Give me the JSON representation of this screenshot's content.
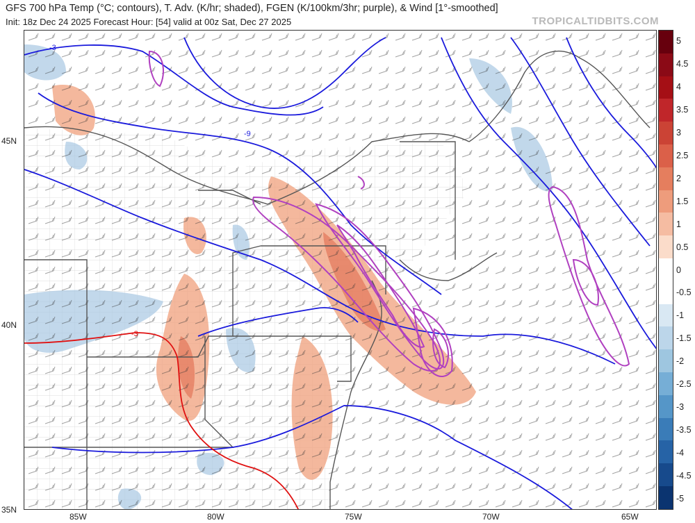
{
  "header": {
    "title": "GFS 700 hPa Temp (°C; contours), T. Adv. (K/hr; shaded), FGEN (K/100km/3hr; purple), & Wind [1°-smoothed]",
    "subtitle": "Init: 18z Dec 24 2025   Forecast Hour: [54]   valid at 00z Sat, Dec 27 2025",
    "brand": "TROPICALTIDBITS.COM"
  },
  "latitude_labels": [
    "45N",
    "40N",
    "35N"
  ],
  "longitude_labels": [
    "85W",
    "80W",
    "75W",
    "70W",
    "65W"
  ],
  "contour_labels": [
    "-3",
    "-9",
    "-3"
  ],
  "colorbar": {
    "ticks": [
      "5",
      "4.5",
      "4",
      "3.5",
      "3",
      "2.5",
      "2",
      "1.5",
      "1",
      "0.5",
      "0",
      "-0.5",
      "-1",
      "-1.5",
      "-2",
      "-2.5",
      "-3",
      "-3.5",
      "-4",
      "-4.5",
      "-5"
    ],
    "colors": [
      "#67000d",
      "#8b0a16",
      "#a50f15",
      "#c0262a",
      "#cb4335",
      "#db6049",
      "#e57e5e",
      "#ee9c7c",
      "#f5bca2",
      "#fbdcca",
      "#ffffff",
      "#ffffff",
      "#d9e8f3",
      "#bcd6ea",
      "#9ec6e0",
      "#76aed6",
      "#5596c8",
      "#3a7cb8",
      "#2663a6",
      "#174a8c",
      "#0b3470"
    ]
  },
  "colors": {
    "temp_contour": "#1a1adc",
    "freezing_contour": "#e01010",
    "fgen": "#b040c0",
    "warm_adv": "#f0a07c",
    "cold_adv": "#a8c8e2",
    "borders": "#555555",
    "counties": "#c8c8c8"
  }
}
